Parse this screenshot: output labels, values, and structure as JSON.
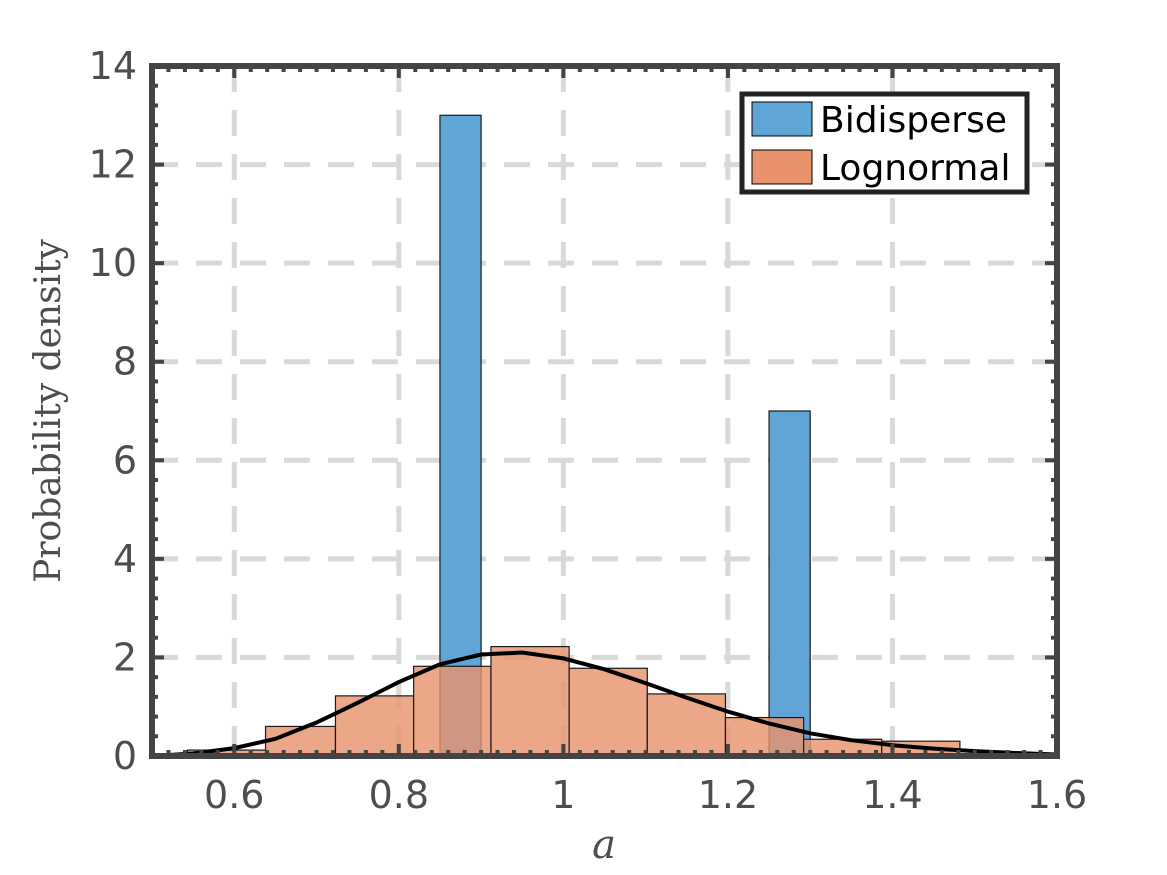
{
  "chart_data": {
    "type": "bar",
    "xlabel": "a",
    "ylabel": "Probability density",
    "xlim": [
      0.5,
      1.6
    ],
    "ylim": [
      0,
      14
    ],
    "x_ticks": [
      0.6,
      0.8,
      1,
      1.2,
      1.4,
      1.6
    ],
    "x_tick_labels": [
      "0.6",
      "0.8",
      "1",
      "1.2",
      "1.4",
      "1.6"
    ],
    "y_ticks": [
      0,
      2,
      4,
      6,
      8,
      10,
      12,
      14
    ],
    "y_tick_labels": [
      "0",
      "2",
      "4",
      "6",
      "8",
      "10",
      "12",
      "14"
    ],
    "grid": true,
    "legend_position": "top-right",
    "series": [
      {
        "name": "Bidisperse",
        "color": "#5fa5d6",
        "bins": [
          {
            "x0": 0.85,
            "x1": 0.9,
            "value": 13.0
          },
          {
            "x0": 1.25,
            "x1": 1.3,
            "value": 7.0
          }
        ]
      },
      {
        "name": "Lognormal",
        "color": "#e8926e",
        "bins": [
          {
            "x0": 0.543,
            "x1": 0.638,
            "value": 0.12
          },
          {
            "x0": 0.638,
            "x1": 0.723,
            "value": 0.6
          },
          {
            "x0": 0.723,
            "x1": 0.818,
            "value": 1.22
          },
          {
            "x0": 0.818,
            "x1": 0.912,
            "value": 1.82
          },
          {
            "x0": 0.912,
            "x1": 1.007,
            "value": 2.22
          },
          {
            "x0": 1.007,
            "x1": 1.102,
            "value": 1.78
          },
          {
            "x0": 1.102,
            "x1": 1.197,
            "value": 1.26
          },
          {
            "x0": 1.197,
            "x1": 1.292,
            "value": 0.78
          },
          {
            "x0": 1.292,
            "x1": 1.387,
            "value": 0.34
          },
          {
            "x0": 1.387,
            "x1": 1.482,
            "value": 0.3
          }
        ]
      }
    ],
    "fit_curve": {
      "color": "#000000",
      "x": [
        0.5,
        0.55,
        0.6,
        0.65,
        0.7,
        0.75,
        0.8,
        0.85,
        0.9,
        0.95,
        1.0,
        1.05,
        1.1,
        1.15,
        1.2,
        1.25,
        1.3,
        1.35,
        1.4,
        1.45,
        1.5,
        1.55,
        1.6
      ],
      "y": [
        0.0,
        0.05,
        0.16,
        0.35,
        0.68,
        1.08,
        1.5,
        1.86,
        2.06,
        2.1,
        1.98,
        1.76,
        1.48,
        1.18,
        0.9,
        0.66,
        0.46,
        0.32,
        0.22,
        0.15,
        0.1,
        0.06,
        0.03
      ]
    }
  }
}
